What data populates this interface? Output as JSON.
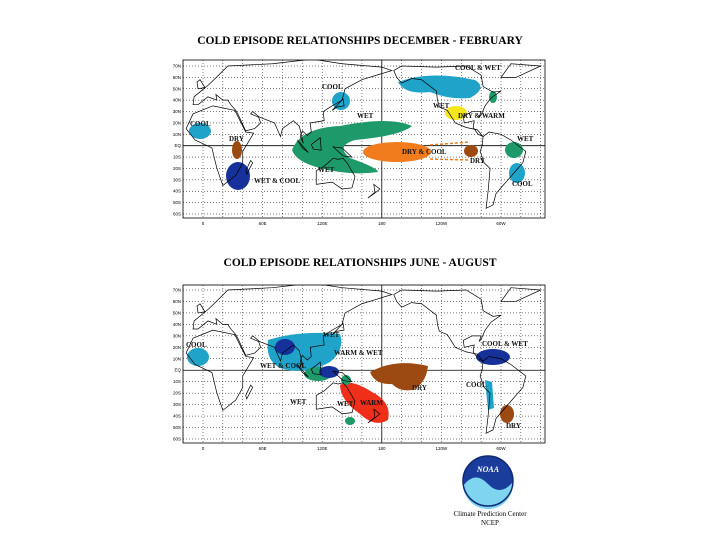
{
  "maps": [
    {
      "title": "COLD EPISODE RELATIONSHIPS   DECEMBER - FEBRUARY",
      "lat_labels": [
        "70N",
        "60N",
        "50N",
        "40N",
        "30N",
        "20N",
        "10N",
        "EQ",
        "10S",
        "20S",
        "30S",
        "40S",
        "50S",
        "60S"
      ],
      "lon_labels": [
        "0",
        "60E",
        "120E",
        "180",
        "120W",
        "60W"
      ],
      "regions": [
        {
          "label": "COOL"
        },
        {
          "label": "DRY"
        },
        {
          "label": "WET & COOL"
        },
        {
          "label": "COOL"
        },
        {
          "label": "WET"
        },
        {
          "label": "WET"
        },
        {
          "label": "COOL & WET"
        },
        {
          "label": "WET"
        },
        {
          "label": "DRY & WARM"
        },
        {
          "label": "DRY & COOL"
        },
        {
          "label": "DRY"
        },
        {
          "label": "WET"
        },
        {
          "label": "COOL"
        }
      ]
    },
    {
      "title": "COLD EPISODE RELATIONSHIPS     JUNE - AUGUST",
      "lat_labels": [
        "70N",
        "60N",
        "50N",
        "40N",
        "30N",
        "20N",
        "10N",
        "EQ",
        "10S",
        "20S",
        "30S",
        "40S",
        "50S",
        "60S"
      ],
      "lon_labels": [
        "0",
        "60E",
        "120E",
        "180",
        "120W",
        "60W"
      ],
      "regions": [
        {
          "label": "COOL"
        },
        {
          "label": "WET & COOL"
        },
        {
          "label": "WET"
        },
        {
          "label": "WARM & WET"
        },
        {
          "label": "WET"
        },
        {
          "label": "WET"
        },
        {
          "label": "WARM"
        },
        {
          "label": "DRY"
        },
        {
          "label": "COOL & WET"
        },
        {
          "label": "COOL"
        },
        {
          "label": "DRY"
        }
      ]
    }
  ],
  "footer": {
    "logo": "NOAA",
    "center": "Climate Prediction Center",
    "unit": "NCEP"
  }
}
